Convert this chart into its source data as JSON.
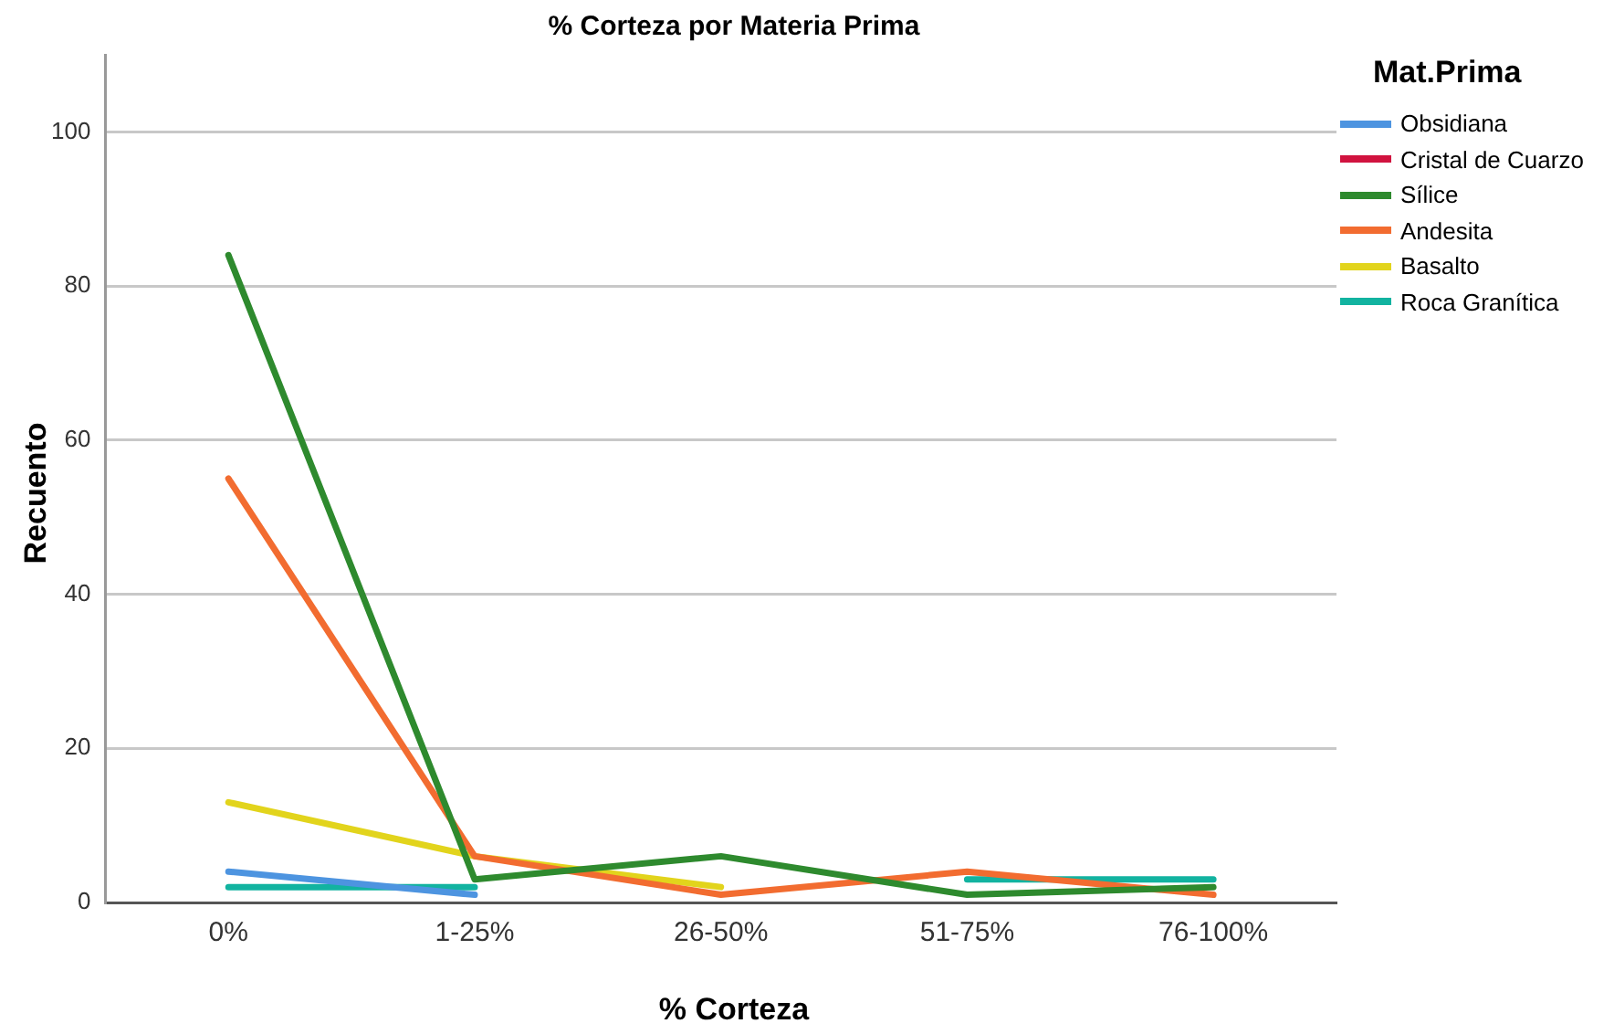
{
  "chart_data": {
    "type": "line",
    "title": "% Corteza por Materia Prima",
    "xlabel": "% Corteza",
    "ylabel": "Recuento",
    "legend_title": "Mat.Prima",
    "categories": [
      "0%",
      "1-25%",
      "26-50%",
      "51-75%",
      "76-100%"
    ],
    "series": [
      {
        "name": "Obsidiana",
        "color": "#4d94e0",
        "values": [
          4,
          1,
          null,
          null,
          null
        ]
      },
      {
        "name": "Cristal de Cuarzo",
        "color": "#d1133f",
        "values": [
          null,
          null,
          null,
          null,
          null
        ]
      },
      {
        "name": "Sílice",
        "color": "#2e8a2e",
        "values": [
          84,
          3,
          6,
          1,
          2
        ]
      },
      {
        "name": "Andesita",
        "color": "#f26c30",
        "values": [
          55,
          6,
          1,
          4,
          1
        ]
      },
      {
        "name": "Basalto",
        "color": "#e2d41c",
        "values": [
          13,
          6,
          2,
          null,
          null
        ]
      },
      {
        "name": "Roca Granítica",
        "color": "#12b3a0",
        "values": [
          2,
          2,
          null,
          3,
          3
        ]
      }
    ],
    "ylim": [
      0,
      110
    ],
    "yticks": [
      0,
      20,
      40,
      60,
      80,
      100
    ],
    "grid": "y",
    "legend": "right",
    "marker": "none",
    "line_style": "solid"
  }
}
